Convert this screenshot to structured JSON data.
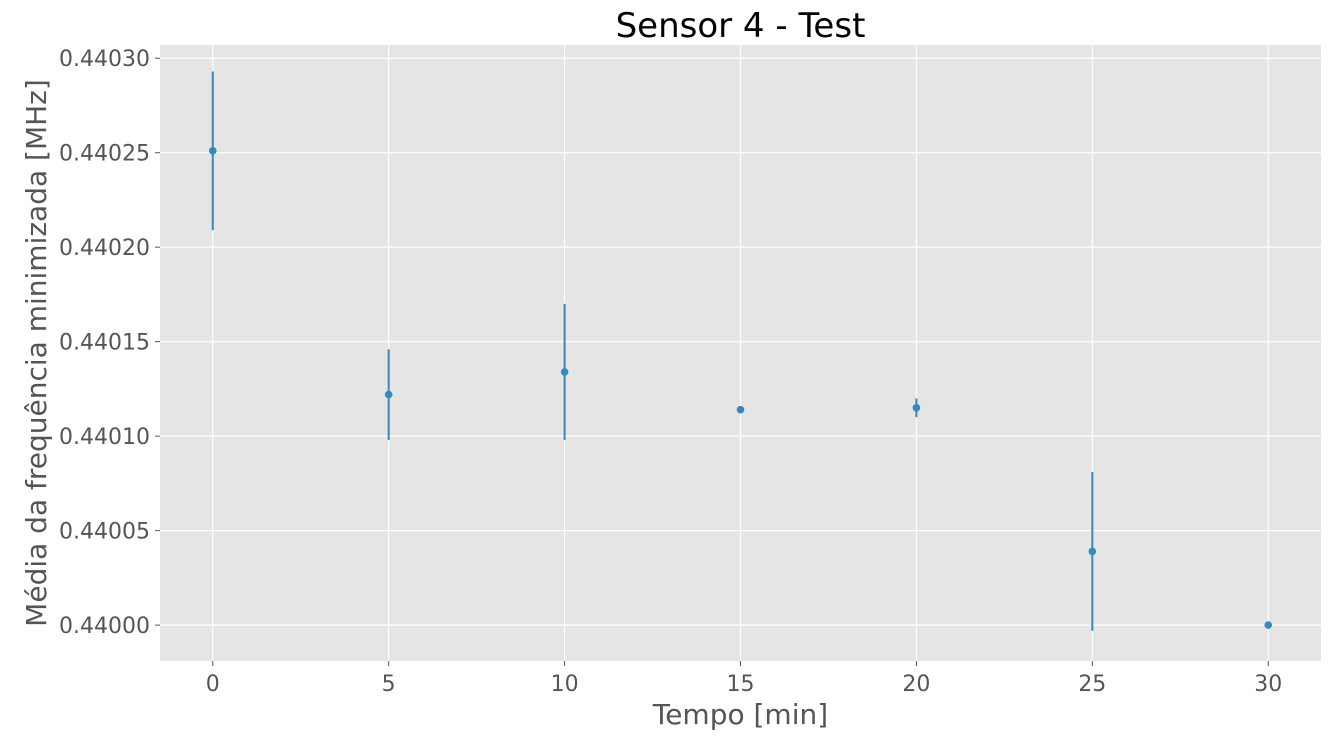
{
  "chart_data": {
    "type": "scatter",
    "title": "Sensor 4 - Test",
    "xlabel": "Tempo [min]",
    "ylabel": "Média da frequência minimizada [MHz]",
    "xlim": [
      -1.5,
      31.5
    ],
    "ylim": [
      0.439981,
      0.440307
    ],
    "xticks": [
      0,
      5,
      10,
      15,
      20,
      25,
      30
    ],
    "xtick_labels": [
      "0",
      "5",
      "10",
      "15",
      "20",
      "25",
      "30"
    ],
    "yticks": [
      0.44,
      0.44005,
      0.4401,
      0.44015,
      0.4402,
      0.44025,
      0.4403
    ],
    "ytick_labels": [
      "0.44000",
      "0.44005",
      "0.44010",
      "0.44015",
      "0.44020",
      "0.44025",
      "0.44030"
    ],
    "grid": true,
    "background_color": "#e5e5e5",
    "series_color": "#348abd",
    "points": [
      {
        "x": 0,
        "y": 0.440251,
        "err": 4.2e-05
      },
      {
        "x": 5,
        "y": 0.440122,
        "err": 2.4e-05
      },
      {
        "x": 10,
        "y": 0.440134,
        "err": 3.6e-05
      },
      {
        "x": 15,
        "y": 0.440114,
        "err": 0
      },
      {
        "x": 20,
        "y": 0.440115,
        "err": 5e-06
      },
      {
        "x": 25,
        "y": 0.440039,
        "err": 4.2e-05
      },
      {
        "x": 30,
        "y": 0.44,
        "err": 0
      }
    ]
  }
}
